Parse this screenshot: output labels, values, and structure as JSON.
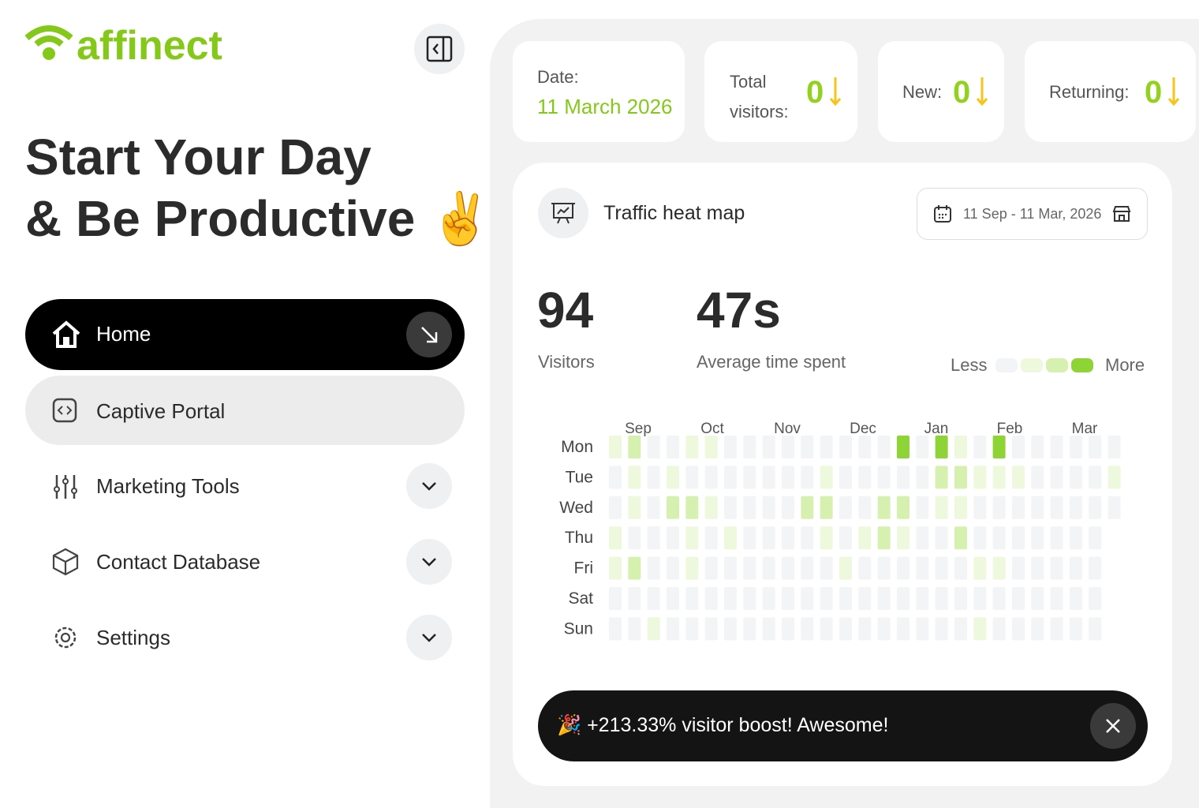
{
  "sidebar": {
    "logo": "affinect",
    "headline": [
      "Start Your Day",
      "& Be Productive ✌️"
    ],
    "nav": [
      "Home",
      "Captive Portal",
      "Marketing Tools",
      "Contact Database",
      "Settings"
    ]
  },
  "stats": {
    "date_label": "Date:",
    "date": "11 March 2026",
    "total_label": [
      "Total",
      "visitors:"
    ],
    "total": 0,
    "new_label": "New:",
    "new": 0,
    "returning_label": "Returning:",
    "returning": 0
  },
  "heatmap": {
    "type": "heatmap",
    "title": "Traffic heat map",
    "range": "11 Sep - 11 Mar, 2026",
    "visitors": 94,
    "visitors_label": "Visitors",
    "time": "47s",
    "time_label": "Average time spent",
    "less": "Less",
    "more": "More",
    "colors": [
      "#f3f4f6",
      "#eef8dc",
      "#d6f0b0",
      "#8fd437"
    ],
    "months": [
      "Sep",
      "Oct",
      "Nov",
      "Dec",
      "Jan",
      "Feb",
      "Mar"
    ],
    "days": [
      "Mon",
      "Tue",
      "Wed",
      "Thu",
      "Fri",
      "Sat",
      "Sun"
    ],
    "rows": [
      [
        1,
        2,
        0,
        0,
        1,
        1,
        0,
        0,
        0,
        0,
        0,
        0,
        0,
        0,
        0,
        3,
        0,
        3,
        1,
        0,
        3,
        0,
        0,
        0,
        0,
        0,
        0
      ],
      [
        0,
        1,
        0,
        1,
        0,
        0,
        0,
        0,
        0,
        0,
        0,
        1,
        0,
        0,
        0,
        0,
        0,
        2,
        2,
        1,
        1,
        1,
        0,
        0,
        0,
        0,
        1
      ],
      [
        0,
        1,
        0,
        2,
        2,
        1,
        0,
        0,
        0,
        0,
        2,
        2,
        0,
        0,
        2,
        2,
        0,
        1,
        1,
        0,
        0,
        0,
        0,
        0,
        0,
        0,
        0
      ],
      [
        1,
        0,
        0,
        0,
        1,
        0,
        1,
        0,
        0,
        0,
        0,
        1,
        0,
        1,
        2,
        1,
        0,
        0,
        2,
        0,
        0,
        0,
        0,
        0,
        0,
        0
      ],
      [
        1,
        2,
        0,
        0,
        1,
        0,
        0,
        0,
        0,
        0,
        0,
        0,
        1,
        0,
        0,
        0,
        0,
        0,
        0,
        1,
        1,
        0,
        0,
        0,
        0,
        0
      ],
      [
        0,
        0,
        0,
        0,
        0,
        0,
        0,
        0,
        0,
        0,
        0,
        0,
        0,
        0,
        0,
        0,
        0,
        0,
        0,
        0,
        0,
        0,
        0,
        0,
        0,
        0
      ],
      [
        0,
        0,
        1,
        0,
        0,
        0,
        0,
        0,
        0,
        0,
        0,
        0,
        0,
        0,
        0,
        0,
        0,
        0,
        0,
        1,
        0,
        0,
        0,
        0,
        0,
        0
      ]
    ]
  },
  "toast": {
    "text": "🎉 +213.33% visitor boost! Awesome!"
  }
}
